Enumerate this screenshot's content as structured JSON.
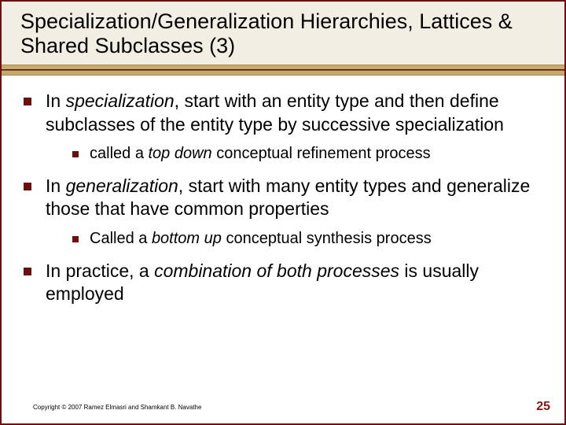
{
  "title": "Specialization/Generalization Hierarchies, Lattices & Shared Subclasses (3)",
  "bullets": [
    {
      "pre": "In ",
      "em": "specialization",
      "post": ", start with an entity type and then define subclasses of the entity type by successive specialization",
      "sub": {
        "pre": "called a ",
        "em": "top down",
        "post": " conceptual refinement process"
      }
    },
    {
      "pre": "In ",
      "em": "generalization",
      "post": ", start with many entity types and generalize those that have common properties",
      "sub": {
        "pre": "Called a ",
        "em": "bottom up",
        "post": " conceptual synthesis process"
      }
    },
    {
      "pre": "In practice, a ",
      "em": "combination of both processes",
      "post": " is usually employed",
      "sub": null
    }
  ],
  "copyright": "Copyright © 2007 Ramez Elmasri and Shamkant B. Navathe",
  "pagenum": "25",
  "colors": {
    "accent": "#6b0f0f",
    "band_gold": "#c7a96b",
    "title_bg": "#f2eee4",
    "pagenum": "#8a1616"
  }
}
